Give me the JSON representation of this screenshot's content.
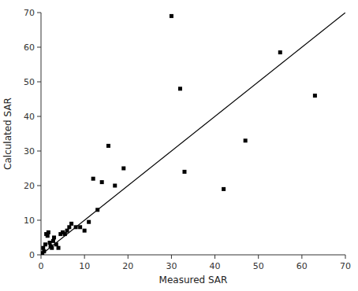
{
  "chart_data": {
    "type": "scatter",
    "xlabel": "Measured SAR",
    "ylabel": "Calculated SAR",
    "xlim": [
      0,
      70
    ],
    "ylim": [
      0,
      70
    ],
    "xticks": [
      0,
      10,
      20,
      30,
      40,
      50,
      60,
      70
    ],
    "yticks": [
      0,
      10,
      20,
      30,
      40,
      50,
      60,
      70
    ],
    "grid": false,
    "series": [
      {
        "type": "scatter",
        "marker": "square",
        "color": "#000000",
        "x": [
          0.3,
          0.5,
          0.7,
          1.0,
          1.2,
          1.5,
          1.7,
          2.0,
          2.2,
          2.5,
          2.8,
          3.0,
          3.5,
          4.0,
          4.5,
          5.0,
          5.5,
          6.0,
          6.5,
          7.0,
          8.0,
          9.0,
          10.0,
          11.0,
          12.0,
          13.0,
          14.0,
          15.5,
          17.0,
          19.0,
          30.0,
          32.0,
          33.0,
          42.0,
          47.0,
          55.0,
          63.0
        ],
        "values": [
          0.5,
          2.0,
          1.0,
          3.0,
          6.0,
          5.5,
          6.5,
          3.5,
          2.5,
          2.0,
          4.0,
          5.0,
          3.0,
          2.0,
          6.0,
          6.5,
          6.0,
          7.0,
          8.0,
          9.0,
          8.0,
          8.0,
          7.0,
          9.5,
          22.0,
          13.0,
          21.0,
          31.5,
          20.0,
          25.0,
          69.0,
          48.0,
          24.0,
          19.0,
          33.0,
          58.5,
          46.0
        ]
      },
      {
        "type": "line",
        "line_style": "solid",
        "color": "#000000",
        "x": [
          0,
          70
        ],
        "values": [
          0,
          70
        ]
      }
    ]
  }
}
